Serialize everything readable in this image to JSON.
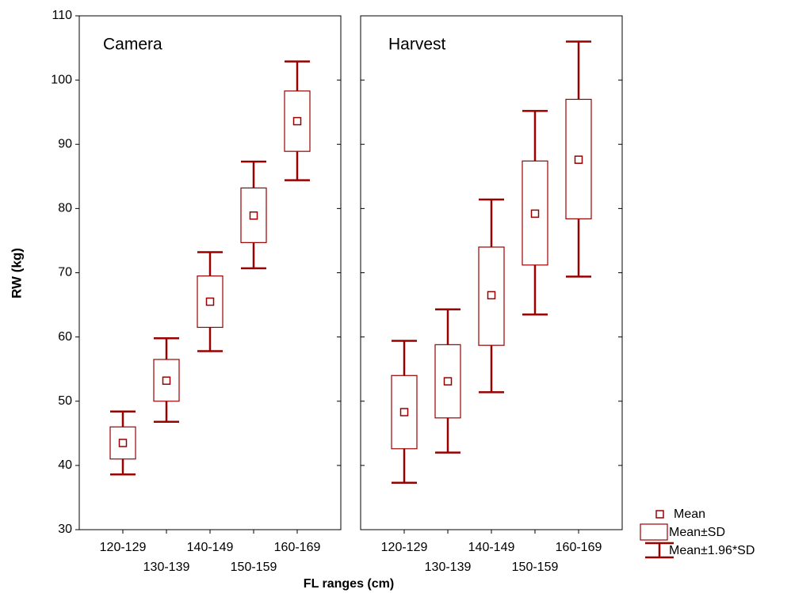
{
  "chart_data": {
    "type": "box",
    "ylabel": "RW (kg)",
    "xlabel": "FL ranges (cm)",
    "categories": [
      "120-129",
      "130-139",
      "140-149",
      "150-159",
      "160-169"
    ],
    "ylim": [
      30,
      110
    ],
    "yticks": [
      30,
      40,
      50,
      60,
      70,
      80,
      90,
      100,
      110
    ],
    "color": "#990000",
    "legend": [
      "Mean",
      "Mean±SD",
      "Mean±1.96*SD"
    ],
    "series": [
      {
        "name": "Camera",
        "mean": [
          43.5,
          53.2,
          65.5,
          78.9,
          93.6
        ],
        "sd_low": [
          41.0,
          50.0,
          61.5,
          74.7,
          88.9
        ],
        "sd_high": [
          46.0,
          56.5,
          69.5,
          83.2,
          98.3
        ],
        "whisker_low": [
          38.6,
          46.8,
          57.8,
          70.7,
          84.4
        ],
        "whisker_high": [
          48.4,
          59.8,
          73.2,
          87.3,
          102.9
        ]
      },
      {
        "name": "Harvest",
        "mean": [
          48.3,
          53.1,
          66.5,
          79.2,
          87.6
        ],
        "sd_low": [
          42.6,
          47.4,
          58.7,
          71.2,
          78.4
        ],
        "sd_high": [
          54.0,
          58.8,
          74.0,
          87.4,
          97.0
        ],
        "whisker_low": [
          37.3,
          42.0,
          51.4,
          63.5,
          69.4
        ],
        "whisker_high": [
          59.4,
          64.3,
          81.4,
          95.2,
          106.0
        ]
      }
    ]
  }
}
